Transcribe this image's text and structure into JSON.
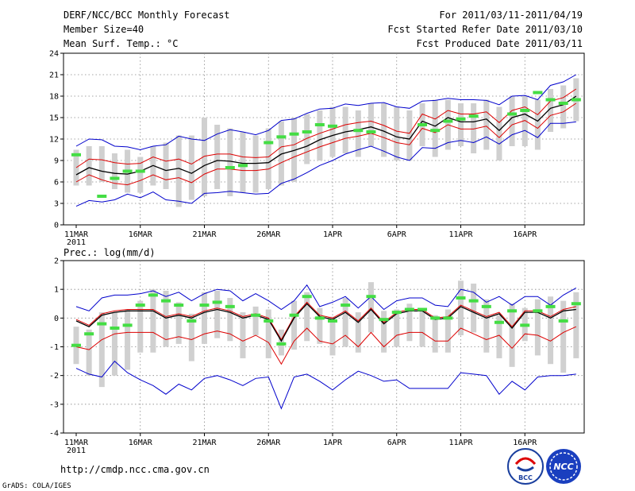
{
  "header": {
    "title": "DERF/NCC/BCC Monthly Forecast",
    "member_size": "Member Size=40",
    "variable1": "Mean Surf. Temp.: °C",
    "period": "For 2011/03/11-2011/04/19",
    "started": "Fcst Started Refer Date 2011/03/10",
    "produced": "Fcst Produced Date 2011/03/11"
  },
  "footer": {
    "url": "http://cmdp.ncc.cma.gov.cn",
    "grads": "GrADS: COLA/IGES",
    "logo_bcc": "BCC",
    "logo_ncc": "NCC"
  },
  "colors": {
    "blue": "#0000cc",
    "red": "#dd0000",
    "black": "#000000",
    "obs": "#44dd44",
    "box": "#d0d0d0"
  },
  "chart_data": [
    {
      "type": "line",
      "title": "Mean Surf. Temp.: °C",
      "ylabel": "°C",
      "ylim": [
        0,
        24
      ],
      "yticks": [
        0,
        3,
        6,
        9,
        12,
        15,
        18,
        21,
        24
      ],
      "xtick_labels": [
        "11MAR",
        "16MAR",
        "21MAR",
        "26MAR",
        "1APR",
        "6APR",
        "11APR",
        "16APR"
      ],
      "year_label": "2011",
      "days": 40,
      "series": [
        {
          "name": "ensemble mean",
          "color": "black",
          "values": [
            7.0,
            8.0,
            7.5,
            7.2,
            7.1,
            7.5,
            8.3,
            7.6,
            7.9,
            7.2,
            8.3,
            9.0,
            8.9,
            8.6,
            8.6,
            8.7,
            9.9,
            10.4,
            11.0,
            11.9,
            12.5,
            13.0,
            13.3,
            13.7,
            13.1,
            12.3,
            12.0,
            14.5,
            13.8,
            15.0,
            14.4,
            14.4,
            14.8,
            13.2,
            15.0,
            15.5,
            14.5,
            16.3,
            16.8,
            18.0
          ]
        },
        {
          "name": "upper",
          "color": "red",
          "values": [
            8.0,
            9.2,
            9.1,
            8.7,
            8.5,
            8.6,
            9.5,
            8.9,
            9.2,
            8.5,
            9.6,
            9.9,
            9.9,
            9.5,
            9.4,
            9.5,
            10.9,
            11.2,
            12.1,
            12.8,
            13.4,
            14.0,
            14.3,
            14.5,
            13.9,
            13.1,
            12.8,
            15.5,
            14.8,
            16.0,
            15.5,
            15.5,
            15.8,
            14.3,
            16.0,
            16.5,
            15.4,
            17.3,
            17.8,
            19.0
          ]
        },
        {
          "name": "lower",
          "color": "red",
          "values": [
            6.0,
            7.0,
            6.3,
            5.8,
            5.6,
            6.2,
            7.0,
            6.3,
            6.6,
            5.9,
            7.1,
            7.8,
            7.8,
            7.6,
            7.6,
            7.8,
            8.7,
            9.5,
            10.2,
            10.9,
            11.5,
            12.1,
            12.4,
            12.8,
            12.2,
            11.5,
            11.2,
            13.5,
            12.9,
            14.0,
            13.4,
            13.4,
            13.8,
            12.2,
            14.0,
            14.6,
            13.5,
            15.3,
            15.8,
            17.0
          ]
        },
        {
          "name": "max",
          "color": "blue",
          "values": [
            11.0,
            12.0,
            11.9,
            11.0,
            10.9,
            10.5,
            11.0,
            11.2,
            12.4,
            12.0,
            11.8,
            12.7,
            13.3,
            13.0,
            12.6,
            13.2,
            14.6,
            14.8,
            15.6,
            16.2,
            16.3,
            16.9,
            16.7,
            17.0,
            17.1,
            16.5,
            16.3,
            17.3,
            17.4,
            17.7,
            17.5,
            17.5,
            17.4,
            16.8,
            18.0,
            18.1,
            17.5,
            19.5,
            20.0,
            21.0
          ]
        },
        {
          "name": "min",
          "color": "blue",
          "values": [
            2.6,
            3.4,
            3.2,
            3.5,
            4.3,
            3.8,
            4.6,
            3.5,
            3.3,
            3.0,
            4.4,
            4.5,
            4.7,
            4.5,
            4.3,
            4.4,
            5.8,
            6.4,
            7.3,
            8.3,
            9.0,
            9.9,
            10.5,
            11.0,
            10.3,
            9.5,
            9.0,
            10.8,
            10.7,
            11.5,
            11.8,
            11.5,
            12.3,
            11.3,
            12.6,
            13.2,
            12.2,
            14.2,
            14.2,
            14.4
          ]
        },
        {
          "name": "observed",
          "color": "green",
          "values": [
            9.8,
            null,
            4.0,
            6.5,
            7.5,
            7.5,
            null,
            null,
            null,
            null,
            null,
            null,
            8.0,
            8.3,
            null,
            11.5,
            12.3,
            12.7,
            13.0,
            14.0,
            13.8,
            null,
            13.2,
            13.0,
            null,
            null,
            null,
            14.0,
            13.2,
            14.5,
            14.8,
            15.2,
            null,
            null,
            15.5,
            16.0,
            18.5,
            17.5,
            17.0,
            17.5
          ]
        }
      ],
      "boxes": {
        "name": "ensemble spread",
        "color": "gray",
        "low": [
          5.5,
          5.5,
          6.0,
          5.0,
          4.5,
          4.5,
          5.5,
          5.0,
          2.5,
          3.5,
          4.0,
          5.0,
          4.0,
          4.5,
          4.5,
          5.0,
          5.5,
          6.0,
          8.5,
          9.0,
          9.5,
          10.0,
          9.5,
          11.0,
          9.5,
          9.0,
          9.0,
          11.0,
          9.5,
          10.5,
          11.0,
          10.0,
          10.5,
          9.0,
          11.0,
          11.0,
          10.5,
          13.0,
          13.5,
          14.5
        ],
        "high": [
          10.5,
          11.0,
          11.0,
          10.0,
          10.5,
          9.5,
          11.0,
          11.5,
          12.5,
          12.5,
          15.0,
          14.0,
          13.5,
          13.0,
          12.5,
          13.5,
          14.5,
          15.0,
          15.5,
          16.0,
          16.5,
          16.5,
          16.0,
          17.0,
          17.0,
          16.5,
          16.0,
          17.0,
          17.5,
          17.5,
          17.0,
          17.0,
          17.5,
          16.5,
          18.0,
          18.0,
          17.5,
          19.0,
          19.5,
          20.5
        ]
      }
    },
    {
      "type": "line",
      "title": "Prec.: log(mm/d)",
      "ylabel": "log(mm/d)",
      "ylim": [
        -4,
        2
      ],
      "yticks": [
        -4,
        -3,
        -2,
        -1,
        0,
        1,
        2
      ],
      "xtick_labels": [
        "11MAR",
        "16MAR",
        "21MAR",
        "26MAR",
        "1APR",
        "6APR",
        "11APR",
        "16APR"
      ],
      "year_label": "2011",
      "days": 40,
      "series": [
        {
          "name": "ensemble mean",
          "color": "black",
          "values": [
            -0.1,
            -0.3,
            0.1,
            0.2,
            0.25,
            0.25,
            0.25,
            0.0,
            0.1,
            0.0,
            0.2,
            0.3,
            0.2,
            0.0,
            0.1,
            -0.05,
            -0.8,
            0.0,
            0.5,
            0.05,
            -0.05,
            0.2,
            -0.15,
            0.3,
            -0.2,
            0.15,
            0.25,
            0.25,
            -0.05,
            0.0,
            0.4,
            0.2,
            0.0,
            0.15,
            -0.35,
            0.2,
            0.2,
            0.0,
            0.25,
            0.3
          ]
        },
        {
          "name": "upper",
          "color": "red",
          "values": [
            -0.05,
            -0.25,
            0.15,
            0.25,
            0.3,
            0.3,
            0.3,
            0.05,
            0.15,
            0.05,
            0.25,
            0.35,
            0.25,
            0.05,
            0.15,
            0.0,
            -0.75,
            0.05,
            0.55,
            0.1,
            0.0,
            0.25,
            -0.1,
            0.35,
            -0.15,
            0.2,
            0.3,
            0.3,
            0.0,
            0.05,
            0.45,
            0.25,
            0.05,
            0.2,
            -0.3,
            0.25,
            0.25,
            0.05,
            0.3,
            0.4
          ]
        },
        {
          "name": "lower",
          "color": "red",
          "values": [
            -1.0,
            -1.1,
            -0.75,
            -0.55,
            -0.5,
            -0.5,
            -0.5,
            -0.75,
            -0.65,
            -0.75,
            -0.55,
            -0.45,
            -0.55,
            -0.8,
            -0.6,
            -0.85,
            -1.6,
            -0.8,
            -0.35,
            -0.8,
            -0.9,
            -0.6,
            -1.0,
            -0.5,
            -1.0,
            -0.6,
            -0.5,
            -0.5,
            -0.8,
            -0.8,
            -0.35,
            -0.55,
            -0.75,
            -0.6,
            -1.05,
            -0.55,
            -0.6,
            -0.8,
            -0.5,
            -0.3
          ]
        },
        {
          "name": "max",
          "color": "blue",
          "values": [
            0.4,
            0.25,
            0.7,
            0.8,
            0.8,
            0.85,
            0.95,
            0.75,
            0.9,
            0.6,
            0.85,
            1.0,
            0.95,
            0.6,
            0.85,
            0.6,
            0.3,
            0.6,
            1.15,
            0.4,
            0.55,
            0.75,
            0.35,
            0.75,
            0.3,
            0.6,
            0.7,
            0.7,
            0.45,
            0.4,
            1.0,
            0.9,
            0.55,
            0.75,
            0.45,
            0.75,
            0.75,
            0.45,
            0.8,
            1.05
          ]
        },
        {
          "name": "min",
          "color": "blue",
          "values": [
            -1.75,
            -1.95,
            -2.05,
            -1.5,
            -1.9,
            -2.15,
            -2.35,
            -2.65,
            -2.3,
            -2.5,
            -2.1,
            -2.0,
            -2.15,
            -2.35,
            -2.1,
            -2.05,
            -3.15,
            -2.05,
            -1.95,
            -2.2,
            -2.5,
            -2.15,
            -1.85,
            -2.0,
            -2.2,
            -2.15,
            -2.45,
            -2.45,
            -2.45,
            -2.45,
            -1.9,
            -1.95,
            -2.0,
            -2.65,
            -2.2,
            -2.5,
            -2.05,
            -2.0,
            -2.0,
            -1.95
          ]
        },
        {
          "name": "observed",
          "color": "green",
          "values": [
            -0.95,
            -0.55,
            -0.2,
            -0.35,
            -0.25,
            0.45,
            0.8,
            0.6,
            0.45,
            -0.1,
            0.45,
            0.55,
            0.4,
            null,
            0.1,
            -0.1,
            -0.9,
            0.1,
            0.75,
            0.0,
            -0.1,
            0.45,
            null,
            0.75,
            -0.05,
            0.2,
            0.3,
            0.3,
            0.0,
            0.0,
            0.7,
            0.6,
            0.4,
            -0.15,
            0.25,
            -0.25,
            0.25,
            0.4,
            -0.1,
            0.5
          ]
        }
      ],
      "boxes": {
        "name": "ensemble spread",
        "color": "gray",
        "low": [
          -1.6,
          -2.0,
          -2.4,
          -2.0,
          -1.8,
          -1.2,
          -1.2,
          -1.0,
          -0.9,
          -1.5,
          -0.9,
          -0.7,
          -0.8,
          -1.4,
          -0.6,
          -1.4,
          -1.3,
          -1.1,
          -0.8,
          -0.9,
          -1.3,
          -1.0,
          -1.2,
          -0.5,
          -1.2,
          -1.0,
          -0.8,
          -1.0,
          -1.2,
          -1.2,
          -0.6,
          -0.5,
          -1.2,
          -1.4,
          -1.7,
          -0.8,
          -1.3,
          -1.6,
          -1.9,
          -1.4
        ],
        "high": [
          -0.3,
          -0.4,
          0.2,
          0.2,
          0.3,
          0.6,
          1.0,
          0.95,
          0.55,
          0.15,
          0.9,
          0.95,
          0.7,
          0.2,
          0.4,
          0.3,
          -0.4,
          0.6,
          0.9,
          0.35,
          0.05,
          0.7,
          0.2,
          1.25,
          0.25,
          0.3,
          0.5,
          0.3,
          0.1,
          0.3,
          1.3,
          1.2,
          0.65,
          0.1,
          0.5,
          0.35,
          0.65,
          0.75,
          0.6,
          0.9
        ]
      }
    }
  ]
}
